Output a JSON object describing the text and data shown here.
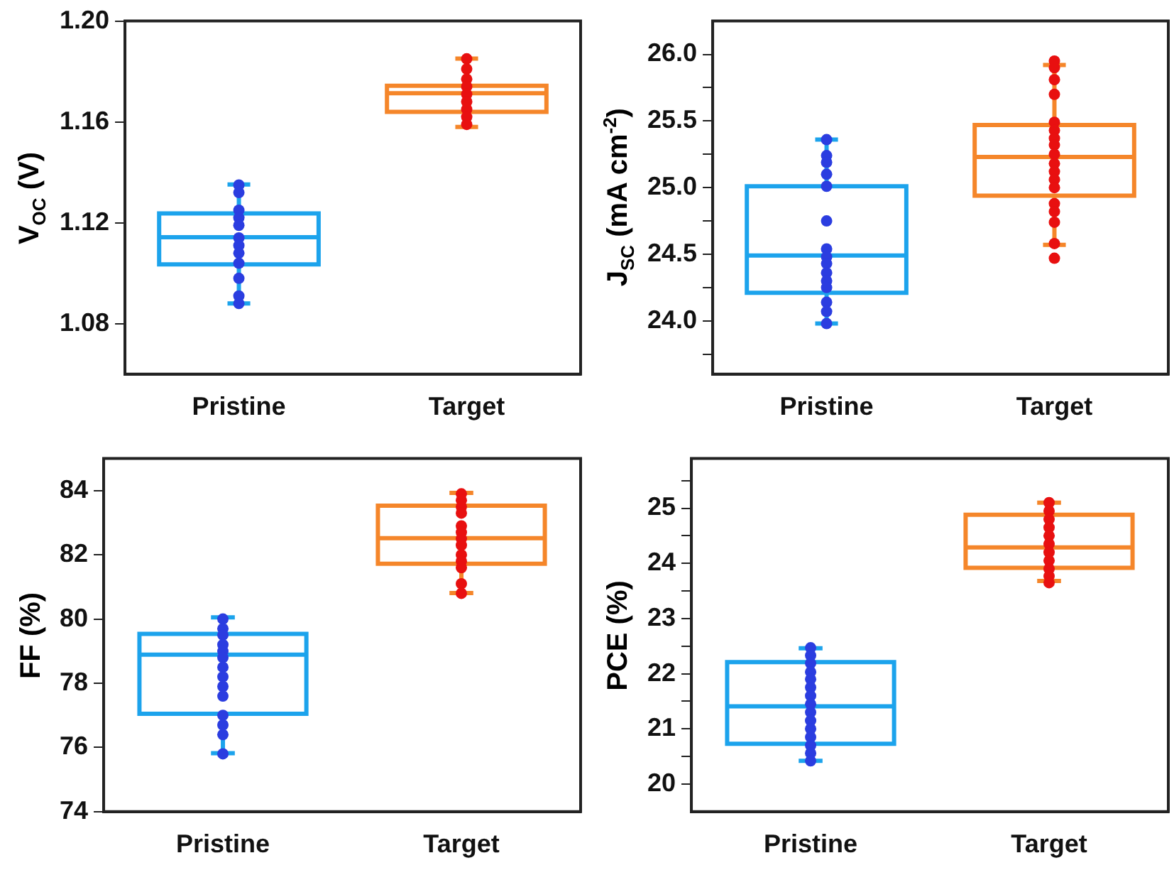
{
  "chart_data": [
    {
      "type": "box",
      "ylabel": "V$_{OC}$ (V)",
      "categories": [
        "Pristine",
        "Target"
      ],
      "ylim": [
        1.06,
        1.2
      ],
      "yticks": [
        1.08,
        1.12,
        1.16,
        {
          "value": 1.2,
          "label": "1.20"
        }
      ],
      "marker": "circle",
      "series": [
        {
          "type": "box",
          "colors": [
            "#1ca3ec",
            "#f5862a"
          ],
          "boxes": [
            {
              "low": 1.088,
              "q1": 1.1035,
              "median": 1.1143,
              "q3": 1.1237,
              "high": 1.1352
            },
            {
              "low": 1.158,
              "q1": 1.164,
              "median": 1.1714,
              "q3": 1.1743,
              "high": 1.1851
            }
          ]
        },
        {
          "type": "scatter",
          "color": "#2b3de0",
          "x": [
            "Pristine",
            "Pristine",
            "Pristine",
            "Pristine",
            "Pristine",
            "Pristine",
            "Pristine",
            "Pristine",
            "Pristine",
            "Pristine",
            "Pristine",
            "Pristine"
          ],
          "values": [
            1.135,
            1.132,
            1.125,
            1.122,
            1.119,
            1.114,
            1.111,
            1.108,
            1.104,
            1.098,
            1.091,
            1.088
          ]
        },
        {
          "type": "scatter",
          "color": "#e81010",
          "x": [
            "Target",
            "Target",
            "Target",
            "Target",
            "Target",
            "Target",
            "Target",
            "Target",
            "Target"
          ],
          "values": [
            1.185,
            1.181,
            1.177,
            1.174,
            1.171,
            1.168,
            1.165,
            1.162,
            1.159
          ]
        }
      ]
    },
    {
      "type": "box",
      "ylabel": "J$_{SC}$ (mA cm$^{-2}$)",
      "categories": [
        "Pristine",
        "Target"
      ],
      "ylim": [
        23.6,
        26.25
      ],
      "yticks": [
        {
          "value": 23.75,
          "label": null
        },
        {
          "value": 24,
          "label": "24.0"
        },
        {
          "value": 24.25,
          "label": null
        },
        {
          "value": 24.5,
          "label": "24.5"
        },
        {
          "value": 24.75,
          "label": null
        },
        {
          "value": 25,
          "label": "25.0"
        },
        {
          "value": 25.25,
          "label": null
        },
        {
          "value": 25.5,
          "label": "25.5"
        },
        {
          "value": 25.75,
          "label": null
        },
        {
          "value": 26,
          "label": "26.0"
        }
      ],
      "marker": "circle",
      "series": [
        {
          "type": "box",
          "colors": [
            "#1ca3ec",
            "#f5862a"
          ],
          "boxes": [
            {
              "low": 23.98,
              "q1": 24.21,
              "median": 24.49,
              "q3": 25.01,
              "high": 25.36
            },
            {
              "low": 24.57,
              "q1": 24.94,
              "median": 25.23,
              "q3": 25.47,
              "high": 25.92
            }
          ]
        },
        {
          "type": "scatter",
          "color": "#2b3de0",
          "x": [
            "Pristine",
            "Pristine",
            "Pristine",
            "Pristine",
            "Pristine",
            "Pristine",
            "Pristine",
            "Pristine",
            "Pristine",
            "Pristine",
            "Pristine",
            "Pristine",
            "Pristine",
            "Pristine",
            "Pristine"
          ],
          "values": [
            25.36,
            25.24,
            25.19,
            25.1,
            25.01,
            24.75,
            24.54,
            24.48,
            24.43,
            24.36,
            24.3,
            24.25,
            24.14,
            24.07,
            23.98
          ]
        },
        {
          "type": "scatter",
          "color": "#e81010",
          "x": [
            "Target",
            "Target",
            "Target",
            "Target",
            "Target",
            "Target",
            "Target",
            "Target",
            "Target",
            "Target",
            "Target",
            "Target",
            "Target",
            "Target",
            "Target",
            "Target",
            "Target",
            "Target"
          ],
          "values": [
            25.95,
            25.9,
            25.81,
            25.7,
            25.49,
            25.43,
            25.37,
            25.32,
            25.25,
            25.18,
            25.12,
            25.06,
            25,
            24.88,
            24.82,
            24.74,
            24.58,
            24.47
          ]
        }
      ]
    },
    {
      "type": "box",
      "ylabel": "FF (%)",
      "categories": [
        "Pristine",
        "Target"
      ],
      "ylim": [
        74,
        85
      ],
      "yticks": [
        74,
        76,
        78,
        80,
        82,
        84
      ],
      "marker": "circle",
      "series": [
        {
          "type": "box",
          "colors": [
            "#1ca3ec",
            "#f5862a"
          ],
          "boxes": [
            {
              "low": 75.82,
              "q1": 77.05,
              "median": 78.89,
              "q3": 79.54,
              "high": 80.05
            },
            {
              "low": 80.81,
              "q1": 81.72,
              "median": 82.52,
              "q3": 83.53,
              "high": 83.93
            }
          ]
        },
        {
          "type": "scatter",
          "color": "#2b3de0",
          "x": [
            "Pristine",
            "Pristine",
            "Pristine",
            "Pristine",
            "Pristine",
            "Pristine",
            "Pristine",
            "Pristine",
            "Pristine",
            "Pristine",
            "Pristine",
            "Pristine",
            "Pristine",
            "Pristine"
          ],
          "values": [
            80,
            79.7,
            79.5,
            79.2,
            79,
            78.8,
            78.5,
            78.2,
            77.9,
            77.6,
            77,
            76.7,
            76.4,
            75.8
          ]
        },
        {
          "type": "scatter",
          "color": "#e81010",
          "x": [
            "Target",
            "Target",
            "Target",
            "Target",
            "Target",
            "Target",
            "Target",
            "Target",
            "Target",
            "Target",
            "Target",
            "Target",
            "Target"
          ],
          "values": [
            83.9,
            83.7,
            83.5,
            83.3,
            82.9,
            82.7,
            82.5,
            82.3,
            82,
            81.8,
            81.6,
            81.1,
            80.8
          ]
        }
      ]
    },
    {
      "type": "box",
      "ylabel": "PCE (%)",
      "categories": [
        "Pristine",
        "Target"
      ],
      "ylim": [
        19.5,
        25.9
      ],
      "yticks": [
        20,
        {
          "value": 20.5,
          "label": null
        },
        21,
        {
          "value": 21.5,
          "label": null
        },
        22,
        {
          "value": 22.5,
          "label": null
        },
        23,
        {
          "value": 23.5,
          "label": null
        },
        24,
        {
          "value": 24.5,
          "label": null
        },
        25,
        {
          "value": 25.5,
          "label": null
        }
      ],
      "marker": "circle",
      "series": [
        {
          "type": "box",
          "colors": [
            "#1ca3ec",
            "#f5862a"
          ],
          "boxes": [
            {
              "low": 20.42,
              "q1": 20.73,
              "median": 21.41,
              "q3": 22.21,
              "high": 22.46
            },
            {
              "low": 23.68,
              "q1": 23.92,
              "median": 24.29,
              "q3": 24.88,
              "high": 25.1
            }
          ]
        },
        {
          "type": "scatter",
          "color": "#2b3de0",
          "x": [
            "Pristine",
            "Pristine",
            "Pristine",
            "Pristine",
            "Pristine",
            "Pristine",
            "Pristine",
            "Pristine",
            "Pristine",
            "Pristine",
            "Pristine",
            "Pristine",
            "Pristine",
            "Pristine",
            "Pristine"
          ],
          "values": [
            22.47,
            22.33,
            22.19,
            22.03,
            21.9,
            21.75,
            21.6,
            21.45,
            21.3,
            21.15,
            21,
            20.85,
            20.7,
            20.56,
            20.42
          ]
        },
        {
          "type": "scatter",
          "color": "#e81010",
          "x": [
            "Target",
            "Target",
            "Target",
            "Target",
            "Target",
            "Target",
            "Target",
            "Target",
            "Target",
            "Target",
            "Target"
          ],
          "values": [
            25.1,
            24.95,
            24.8,
            24.65,
            24.5,
            24.35,
            24.2,
            24.05,
            23.9,
            23.77,
            23.65
          ]
        }
      ]
    }
  ]
}
